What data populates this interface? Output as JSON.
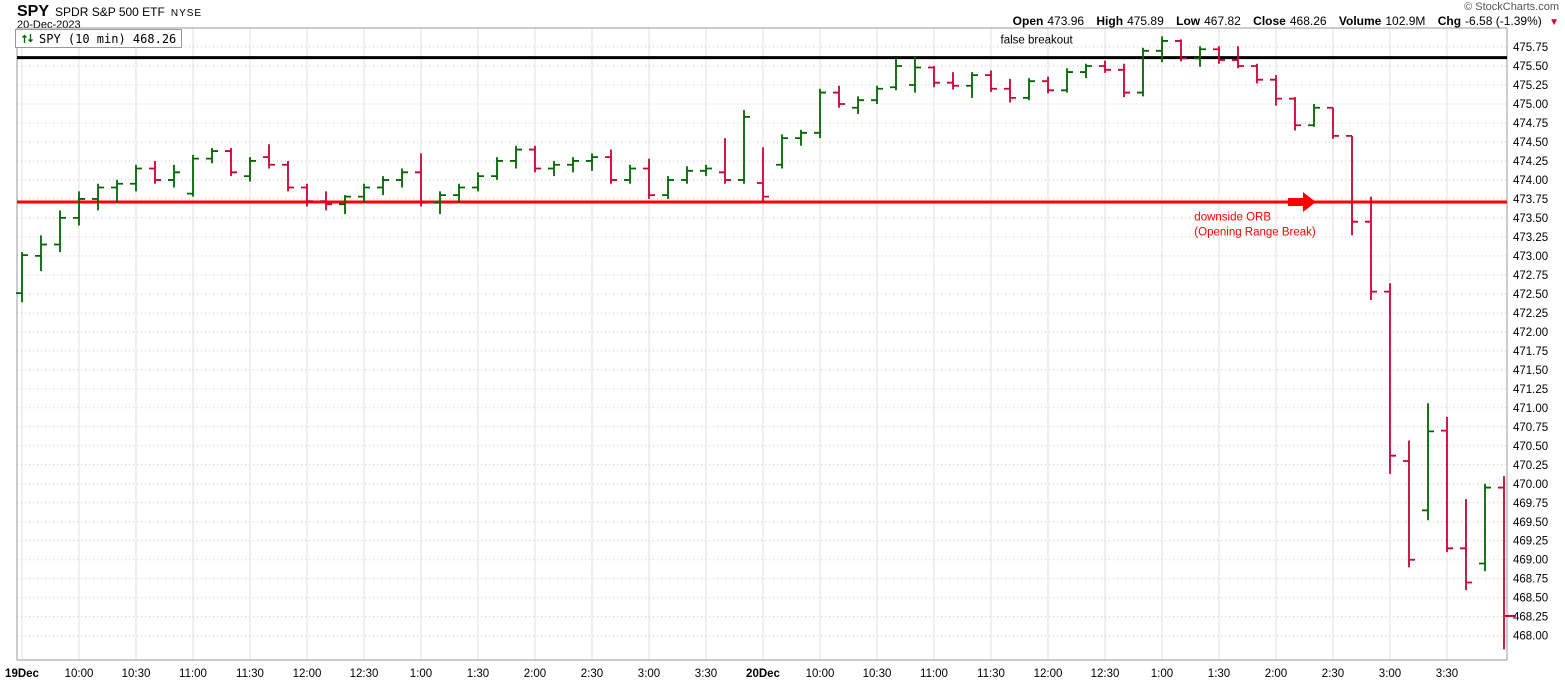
{
  "header": {
    "symbol": "SPY",
    "name": "SPDR S&P 500 ETF",
    "exchange": "NYSE",
    "date": "20-Dec-2023",
    "copyright": "© StockCharts.com"
  },
  "quote": {
    "items": [
      {
        "label": "Open",
        "value": "473.96"
      },
      {
        "label": "High",
        "value": "475.89"
      },
      {
        "label": "Low",
        "value": "467.82"
      },
      {
        "label": "Close",
        "value": "468.26"
      },
      {
        "label": "Volume",
        "value": "102.9M"
      },
      {
        "label": "Chg",
        "value": "-6.58 (-1.39%)"
      }
    ],
    "down_arrow": "▼"
  },
  "legend": {
    "icon": "ohlc-price-style-icon",
    "label": "SPY (10 min) 468.26"
  },
  "chart_data": {
    "type": "ohlc-bar",
    "period": "10 min",
    "y_axis": {
      "min": 468.0,
      "max": 475.75,
      "tick_step": 0.25,
      "label_decimals": 2
    },
    "x_ticks": [
      {
        "index": 0,
        "label": "19Dec",
        "bold": true
      },
      {
        "index": 3,
        "label": "10:00"
      },
      {
        "index": 6,
        "label": "10:30"
      },
      {
        "index": 9,
        "label": "11:00"
      },
      {
        "index": 12,
        "label": "11:30"
      },
      {
        "index": 15,
        "label": "12:00"
      },
      {
        "index": 18,
        "label": "12:30"
      },
      {
        "index": 21,
        "label": "1:00"
      },
      {
        "index": 24,
        "label": "1:30"
      },
      {
        "index": 27,
        "label": "2:00"
      },
      {
        "index": 30,
        "label": "2:30"
      },
      {
        "index": 33,
        "label": "3:00"
      },
      {
        "index": 36,
        "label": "3:30"
      },
      {
        "index": 39,
        "label": "20Dec",
        "bold": true
      },
      {
        "index": 42,
        "label": "10:00"
      },
      {
        "index": 45,
        "label": "10:30"
      },
      {
        "index": 48,
        "label": "11:00"
      },
      {
        "index": 51,
        "label": "11:30"
      },
      {
        "index": 54,
        "label": "12:00"
      },
      {
        "index": 57,
        "label": "12:30"
      },
      {
        "index": 60,
        "label": "1:00"
      },
      {
        "index": 63,
        "label": "1:30"
      },
      {
        "index": 66,
        "label": "2:00"
      },
      {
        "index": 69,
        "label": "2:30"
      },
      {
        "index": 72,
        "label": "3:00"
      },
      {
        "index": 75,
        "label": "3:30"
      }
    ],
    "bars": [
      [
        "9:30",
        472.51,
        473.05,
        472.39,
        473.01
      ],
      [
        "9:40",
        473.0,
        473.27,
        472.8,
        473.15
      ],
      [
        "9:50",
        473.15,
        473.6,
        473.05,
        473.5
      ],
      [
        "10:00",
        473.5,
        473.85,
        473.4,
        473.75
      ],
      [
        "10:10",
        473.75,
        473.95,
        473.6,
        473.9
      ],
      [
        "10:20",
        473.9,
        474.0,
        473.7,
        473.95
      ],
      [
        "10:30",
        473.95,
        474.2,
        473.85,
        474.15
      ],
      [
        "10:40",
        474.15,
        474.25,
        473.95,
        474.0
      ],
      [
        "10:50",
        474.0,
        474.2,
        473.9,
        474.1
      ],
      [
        "11:00",
        473.82,
        474.33,
        473.78,
        474.28
      ],
      [
        "11:10",
        474.28,
        474.42,
        474.22,
        474.38
      ],
      [
        "11:20",
        474.38,
        474.42,
        474.05,
        474.1
      ],
      [
        "11:30",
        474.05,
        474.3,
        473.98,
        474.25
      ],
      [
        "11:40",
        474.3,
        474.47,
        474.15,
        474.2
      ],
      [
        "11:50",
        474.2,
        474.25,
        473.85,
        473.9
      ],
      [
        "12:00",
        473.9,
        473.95,
        473.65,
        473.72
      ],
      [
        "12:10",
        473.72,
        473.85,
        473.6,
        473.68
      ],
      [
        "12:20",
        473.68,
        473.8,
        473.55,
        473.78
      ],
      [
        "12:30",
        473.78,
        473.95,
        473.7,
        473.9
      ],
      [
        "12:40",
        473.9,
        474.05,
        473.8,
        474.0
      ],
      [
        "12:50",
        474.0,
        474.15,
        473.9,
        474.1
      ],
      [
        "1:00",
        474.1,
        474.35,
        473.65,
        473.7
      ],
      [
        "1:10",
        473.7,
        473.85,
        473.55,
        473.8
      ],
      [
        "1:20",
        473.8,
        473.95,
        473.7,
        473.9
      ],
      [
        "1:30",
        473.9,
        474.1,
        473.85,
        474.05
      ],
      [
        "1:40",
        474.05,
        474.3,
        474.0,
        474.25
      ],
      [
        "1:50",
        474.25,
        474.45,
        474.15,
        474.4
      ],
      [
        "2:00",
        474.4,
        474.45,
        474.1,
        474.15
      ],
      [
        "2:10",
        474.15,
        474.25,
        474.05,
        474.2
      ],
      [
        "2:20",
        474.2,
        474.3,
        474.1,
        474.25
      ],
      [
        "2:30",
        474.25,
        474.35,
        474.12,
        474.3
      ],
      [
        "2:40",
        474.3,
        474.4,
        473.95,
        474.0
      ],
      [
        "2:50",
        474.0,
        474.2,
        473.95,
        474.15
      ],
      [
        "3:00",
        474.15,
        474.28,
        473.75,
        473.8
      ],
      [
        "3:10",
        473.8,
        474.05,
        473.75,
        474.0
      ],
      [
        "3:20",
        474.0,
        474.18,
        473.95,
        474.12
      ],
      [
        "3:30",
        474.12,
        474.2,
        474.05,
        474.15
      ],
      [
        "3:40",
        474.1,
        474.55,
        473.95,
        474.0
      ],
      [
        "3:50",
        474.0,
        474.92,
        473.95,
        474.83
      ],
      [
        "9:30",
        473.96,
        474.43,
        473.7,
        473.78
      ],
      [
        "9:40",
        474.2,
        474.6,
        474.15,
        474.55
      ],
      [
        "9:50",
        474.55,
        474.66,
        474.45,
        474.62
      ],
      [
        "10:00",
        474.62,
        475.2,
        474.55,
        475.15
      ],
      [
        "10:10",
        475.15,
        475.24,
        474.95,
        475.0
      ],
      [
        "10:20",
        474.95,
        475.1,
        474.87,
        475.05
      ],
      [
        "10:30",
        475.05,
        475.24,
        475.0,
        475.2
      ],
      [
        "10:40",
        475.22,
        475.6,
        475.18,
        475.5
      ],
      [
        "10:50",
        475.25,
        475.62,
        475.15,
        475.48
      ],
      [
        "11:00",
        475.48,
        475.5,
        475.22,
        475.28
      ],
      [
        "11:10",
        475.28,
        475.42,
        475.19,
        475.24
      ],
      [
        "11:20",
        475.24,
        475.42,
        475.08,
        475.38
      ],
      [
        "11:30",
        475.38,
        475.44,
        475.16,
        475.2
      ],
      [
        "11:40",
        475.2,
        475.33,
        475.02,
        475.08
      ],
      [
        "11:50",
        475.08,
        475.34,
        475.05,
        475.3
      ],
      [
        "12:00",
        475.3,
        475.36,
        475.14,
        475.18
      ],
      [
        "12:10",
        475.18,
        475.47,
        475.15,
        475.42
      ],
      [
        "12:20",
        475.42,
        475.53,
        475.34,
        475.5
      ],
      [
        "12:30",
        475.5,
        475.57,
        475.41,
        475.45
      ],
      [
        "12:40",
        475.45,
        475.53,
        475.09,
        475.15
      ],
      [
        "12:50",
        475.15,
        475.74,
        475.1,
        475.7
      ],
      [
        "1:00",
        475.7,
        475.89,
        475.55,
        475.83
      ],
      [
        "1:10",
        475.83,
        475.85,
        475.56,
        475.6
      ],
      [
        "1:20",
        475.6,
        475.76,
        475.49,
        475.72
      ],
      [
        "1:30",
        475.72,
        475.76,
        475.53,
        475.58
      ],
      [
        "1:40",
        475.58,
        475.76,
        475.47,
        475.5
      ],
      [
        "1:50",
        475.5,
        475.53,
        475.27,
        475.32
      ],
      [
        "2:00",
        475.32,
        475.38,
        474.98,
        475.07
      ],
      [
        "2:10",
        475.07,
        475.09,
        474.65,
        474.72
      ],
      [
        "2:20",
        474.72,
        475.0,
        474.7,
        474.95
      ],
      [
        "2:30",
        474.95,
        474.95,
        474.54,
        474.58
      ],
      [
        "2:40",
        474.58,
        474.58,
        473.27,
        473.45
      ],
      [
        "2:50",
        473.45,
        473.78,
        472.42,
        472.53
      ],
      [
        "3:00",
        472.53,
        472.64,
        470.13,
        470.37
      ],
      [
        "3:10",
        470.3,
        470.57,
        468.9,
        469.0
      ],
      [
        "3:20",
        469.65,
        471.06,
        469.52,
        470.69
      ],
      [
        "3:30",
        470.7,
        470.88,
        469.1,
        469.15
      ],
      [
        "3:40",
        469.15,
        469.8,
        468.6,
        468.7
      ],
      [
        "3:50",
        468.95,
        470.0,
        468.85,
        469.95
      ],
      [
        "4:00",
        469.95,
        470.1,
        467.82,
        468.26
      ]
    ],
    "overlay_lines": [
      {
        "name": "resistance-line",
        "price": 475.61,
        "color": "#000000",
        "width": 3
      },
      {
        "name": "opening-range-break-line",
        "price": 473.71,
        "color": "#ff0000",
        "width": 3
      }
    ],
    "annotations": [
      {
        "text": "false breakout",
        "color": "#000000",
        "bar": 51.5,
        "price": 475.85
      },
      {
        "text": "downside ORB",
        "color": "#ff0000",
        "bar": 61.7,
        "price": 473.52
      },
      {
        "text": "(Opening Range Break)",
        "color": "#ff0000",
        "bar": 61.7,
        "price": 473.32
      }
    ],
    "arrow": {
      "tip_bar": 68.1,
      "price": 473.71,
      "direction": "right",
      "color": "#ff0000"
    },
    "close_marker": {
      "price": 468.26,
      "color": "#cc0033"
    },
    "colors": {
      "up": "#006600",
      "down": "#cc0033",
      "grid_v": "#e0e0e0",
      "grid_h": "#c9c9c9",
      "frame": "#999999"
    }
  }
}
